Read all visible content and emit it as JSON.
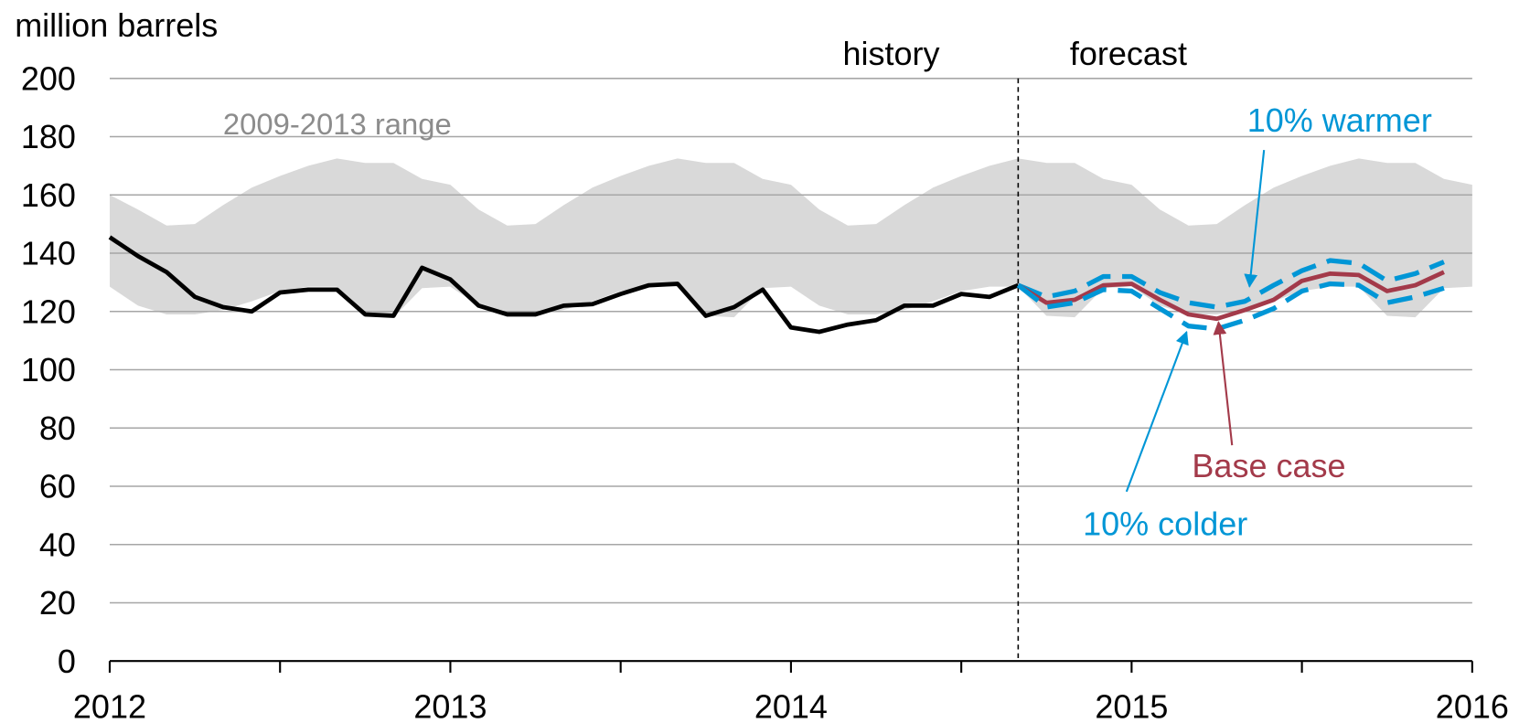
{
  "chart_data": {
    "type": "line",
    "y_label": "million barrels",
    "annotations": [
      "history",
      "forecast"
    ],
    "divider_x": 2014.667,
    "xlim": [
      2012,
      2016
    ],
    "xticks": [
      2012,
      2013,
      2014,
      2015,
      2016
    ],
    "xminor_ticks": [
      2012.5,
      2013.5,
      2014.5,
      2015.5
    ],
    "ylim": [
      0,
      200
    ],
    "yticks": [
      0,
      20,
      40,
      60,
      80,
      100,
      120,
      140,
      160,
      180,
      200
    ],
    "grid": true,
    "x": [
      2012,
      2012.083,
      2012.167,
      2012.25,
      2012.333,
      2012.417,
      2012.5,
      2012.583,
      2012.667,
      2012.75,
      2012.833,
      2012.917,
      2013,
      2013.083,
      2013.167,
      2013.25,
      2013.333,
      2013.417,
      2013.5,
      2013.583,
      2013.667,
      2013.75,
      2013.833,
      2013.917,
      2014,
      2014.083,
      2014.167,
      2014.25,
      2014.333,
      2014.417,
      2014.5,
      2014.583,
      2014.667,
      2014.75,
      2014.833,
      2014.917,
      2015,
      2015.083,
      2015.167,
      2015.25,
      2015.333,
      2015.417,
      2015.5,
      2015.583,
      2015.667,
      2015.75,
      2015.833,
      2015.917,
      2016
    ],
    "range": {
      "name": "2009-2013 range",
      "color": "#d9d9d9",
      "label_color": "#8c8c8c",
      "upper": [
        160,
        155,
        149.5,
        150,
        156.5,
        162.5,
        166.5,
        170,
        172.5,
        171,
        171,
        165.5,
        163.5,
        155,
        149.5,
        150,
        156.5,
        162.5,
        166.5,
        170,
        172.5,
        171,
        171,
        165.5,
        163.5,
        155,
        149.5,
        150,
        156.5,
        162.5,
        166.5,
        170,
        172.5,
        171,
        171,
        165.5,
        163.5,
        155,
        149.5,
        150,
        156.5,
        162.5,
        166.5,
        170,
        172.5,
        171,
        171,
        165.5,
        163.5
      ],
      "lower": [
        128.5,
        122,
        119,
        119,
        120.5,
        123.5,
        127,
        128.5,
        128.5,
        118.5,
        118,
        128,
        128.5,
        122,
        119,
        119,
        120.5,
        123.5,
        127,
        128.5,
        128.5,
        118.5,
        118,
        128,
        128.5,
        122,
        119,
        119,
        120.5,
        123.5,
        127,
        128.5,
        128.5,
        118.5,
        118,
        128,
        128.5,
        122,
        119,
        119,
        120.5,
        123.5,
        127,
        128.5,
        128.5,
        118.5,
        118,
        128,
        128.5
      ]
    },
    "series": [
      {
        "color": "#000000",
        "dashed": false,
        "values": [
          145.5,
          139,
          133.5,
          125,
          121.5,
          120,
          126.5,
          127.5,
          127.5,
          119,
          118.5,
          135,
          131,
          122,
          119,
          119,
          122,
          122.5,
          126,
          129,
          129.5,
          118.5,
          121.5,
          127.5,
          114.5,
          113,
          115.5,
          117,
          122,
          122,
          126,
          125,
          129,
          null,
          null,
          null,
          null,
          null,
          null,
          null,
          null,
          null,
          null,
          null,
          null,
          null,
          null,
          null,
          null
        ]
      },
      {
        "name": "10% warmer",
        "color": "#0096d6",
        "dashed": true,
        "values": [
          null,
          null,
          null,
          null,
          null,
          null,
          null,
          null,
          null,
          null,
          null,
          null,
          null,
          null,
          null,
          null,
          null,
          null,
          null,
          null,
          null,
          null,
          null,
          null,
          null,
          null,
          null,
          null,
          null,
          null,
          null,
          null,
          129,
          125,
          127,
          132,
          132,
          126.5,
          123,
          121.5,
          123.5,
          129,
          134,
          137.5,
          136.5,
          130.5,
          133,
          137,
          null
        ]
      },
      {
        "name": "Base case",
        "color": "#a33a4a",
        "dashed": false,
        "values": [
          null,
          null,
          null,
          null,
          null,
          null,
          null,
          null,
          null,
          null,
          null,
          null,
          null,
          null,
          null,
          null,
          null,
          null,
          null,
          null,
          null,
          null,
          null,
          null,
          null,
          null,
          null,
          null,
          null,
          null,
          null,
          null,
          129,
          123,
          124,
          129,
          129.5,
          124,
          119,
          117.5,
          120.5,
          124,
          130.5,
          133,
          132.5,
          127,
          129,
          133.5,
          null
        ]
      },
      {
        "name": "10% colder",
        "color": "#0096d6",
        "dashed": true,
        "values": [
          null,
          null,
          null,
          null,
          null,
          null,
          null,
          null,
          null,
          null,
          null,
          null,
          null,
          null,
          null,
          null,
          null,
          null,
          null,
          null,
          null,
          null,
          null,
          null,
          null,
          null,
          null,
          null,
          null,
          null,
          null,
          null,
          129,
          121.5,
          123,
          127.5,
          127,
          121,
          115,
          114,
          117,
          121,
          127,
          129.5,
          129,
          123,
          125,
          128,
          null
        ]
      }
    ]
  }
}
